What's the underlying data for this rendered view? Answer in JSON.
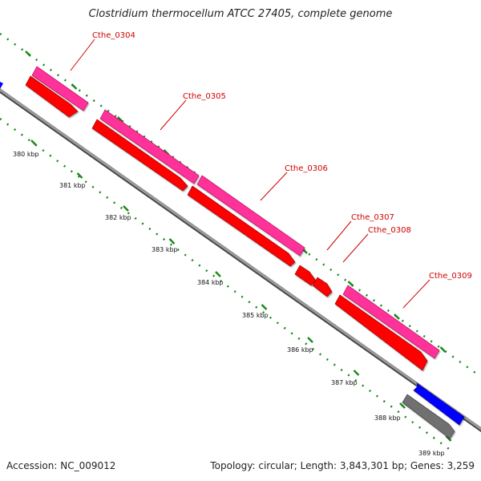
{
  "title": "Clostridium thermocellum ATCC 27405, complete genome",
  "footer": {
    "accession": "Accession: NC_009012",
    "summary": "Topology: circular; Length: 3,843,301 bp; Genes: 3,259"
  },
  "ticks": [
    "380 kbp",
    "381 kbp",
    "382 kbp",
    "383 kbp",
    "384 kbp",
    "385 kbp",
    "386 kbp",
    "387 kbp",
    "388 kbp",
    "389 kbp"
  ],
  "genes": [
    {
      "label": "Cthe_0304"
    },
    {
      "label": "Cthe_0305"
    },
    {
      "label": "Cthe_0306"
    },
    {
      "label": "Cthe_0307"
    },
    {
      "label": "Cthe_0308"
    },
    {
      "label": "Cthe_0309"
    }
  ],
  "colors": {
    "backbone": "#808080",
    "cds_forward": "#ff0000",
    "feature_track": "#ff3399",
    "other_cds": "#0000ff",
    "other_feature": "#707070",
    "tick_marks": "#1a8a1a",
    "label_text": "#d00000"
  }
}
